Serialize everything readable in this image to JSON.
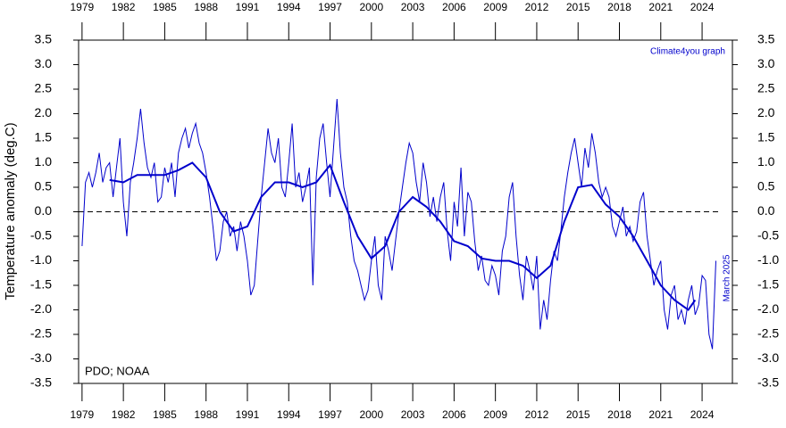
{
  "chart_data": {
    "type": "line",
    "ylabel": "Temperature anomaly (deg.C)",
    "annotations": [
      "Climate4you graph",
      "March 2025",
      "PDO; NOAA"
    ],
    "xlim": [
      1978.75,
      2026.2
    ],
    "ylim": [
      -3.5,
      3.5
    ],
    "xticks": [
      1979,
      1982,
      1985,
      1988,
      1991,
      1994,
      1997,
      2000,
      2003,
      2006,
      2009,
      2012,
      2015,
      2018,
      2021,
      2024
    ],
    "yticks": [
      3.5,
      {
        "value": 3,
        "label": "3.0"
      },
      2.5,
      {
        "value": 2,
        "label": "2.0"
      },
      1.5,
      {
        "value": 1,
        "label": "1.0"
      },
      0.5,
      {
        "value": 0,
        "label": "0.0"
      },
      -0.5,
      {
        "value": -1,
        "label": "-1.0"
      },
      -1.5,
      {
        "value": -2,
        "label": "-2.0"
      },
      -2.5,
      {
        "value": -3,
        "label": "-3.0"
      },
      -3.5
    ],
    "series": [
      {
        "color": "#0000cc",
        "width": 1,
        "x": [
          1979,
          1979.25,
          1979.5,
          1979.75,
          1980,
          1980.25,
          1980.5,
          1980.75,
          1981,
          1981.25,
          1981.5,
          1981.75,
          1982,
          1982.25,
          1982.5,
          1982.75,
          1983,
          1983.25,
          1983.5,
          1983.75,
          1984,
          1984.25,
          1984.5,
          1984.75,
          1985,
          1985.25,
          1985.5,
          1985.75,
          1986,
          1986.25,
          1986.5,
          1986.75,
          1987,
          1987.25,
          1987.5,
          1987.75,
          1988,
          1988.25,
          1988.5,
          1988.75,
          1989,
          1989.25,
          1989.5,
          1989.75,
          1990,
          1990.25,
          1990.5,
          1990.75,
          1991,
          1991.25,
          1991.5,
          1991.75,
          1992,
          1992.25,
          1992.5,
          1992.75,
          1993,
          1993.25,
          1993.5,
          1993.75,
          1994,
          1994.25,
          1994.5,
          1994.75,
          1995,
          1995.25,
          1995.5,
          1995.75,
          1996,
          1996.25,
          1996.5,
          1996.75,
          1997,
          1997.25,
          1997.5,
          1997.75,
          1998,
          1998.25,
          1998.5,
          1998.75,
          1999,
          1999.25,
          1999.5,
          1999.75,
          2000,
          2000.25,
          2000.5,
          2000.75,
          2001,
          2001.25,
          2001.5,
          2001.75,
          2002,
          2002.25,
          2002.5,
          2002.75,
          2003,
          2003.25,
          2003.5,
          2003.75,
          2004,
          2004.25,
          2004.5,
          2004.75,
          2005,
          2005.25,
          2005.5,
          2005.75,
          2006,
          2006.25,
          2006.5,
          2006.75,
          2007,
          2007.25,
          2007.5,
          2007.75,
          2008,
          2008.25,
          2008.5,
          2008.75,
          2009,
          2009.25,
          2009.5,
          2009.75,
          2010,
          2010.25,
          2010.5,
          2010.75,
          2011,
          2011.25,
          2011.5,
          2011.75,
          2012,
          2012.25,
          2012.5,
          2012.75,
          2013,
          2013.25,
          2013.5,
          2013.75,
          2014,
          2014.25,
          2014.5,
          2014.75,
          2015,
          2015.25,
          2015.5,
          2015.75,
          2016,
          2016.25,
          2016.5,
          2016.75,
          2017,
          2017.25,
          2017.5,
          2017.75,
          2018,
          2018.25,
          2018.5,
          2018.75,
          2019,
          2019.25,
          2019.5,
          2019.75,
          2020,
          2020.25,
          2020.5,
          2020.75,
          2021,
          2021.25,
          2021.5,
          2021.75,
          2022,
          2022.25,
          2022.5,
          2022.75,
          2023,
          2023.25,
          2023.5,
          2023.75,
          2024,
          2024.25,
          2024.5,
          2024.75,
          2025
        ],
        "values": [
          -0.7,
          0.6,
          0.8,
          0.5,
          0.8,
          1.2,
          0.6,
          0.9,
          1.0,
          0.3,
          0.9,
          1.5,
          0.2,
          -0.5,
          0.6,
          1.0,
          1.5,
          2.1,
          1.4,
          0.9,
          0.7,
          1.0,
          0.2,
          0.3,
          0.9,
          0.6,
          1.0,
          0.3,
          1.2,
          1.5,
          1.7,
          1.3,
          1.6,
          1.8,
          1.4,
          1.2,
          0.8,
          0.3,
          -0.3,
          -1.0,
          -0.8,
          -0.2,
          0.0,
          -0.5,
          -0.3,
          -0.8,
          -0.2,
          -0.5,
          -1.0,
          -1.7,
          -1.5,
          -0.6,
          0.3,
          1.0,
          1.7,
          1.2,
          1.0,
          1.5,
          0.5,
          0.3,
          1.0,
          1.8,
          0.5,
          0.8,
          0.2,
          0.5,
          0.9,
          -1.5,
          0.7,
          1.5,
          1.8,
          1.0,
          0.3,
          1.3,
          2.3,
          1.2,
          0.5,
          0.2,
          -0.5,
          -1.0,
          -1.2,
          -1.5,
          -1.8,
          -1.6,
          -1.0,
          -0.5,
          -1.5,
          -1.8,
          -0.5,
          -0.8,
          -1.2,
          -0.6,
          0.0,
          0.5,
          1.0,
          1.4,
          1.2,
          0.6,
          0.2,
          1.0,
          0.6,
          -0.1,
          0.3,
          -0.2,
          0.3,
          0.6,
          -0.4,
          -1.0,
          0.2,
          -0.3,
          0.9,
          -0.5,
          0.4,
          0.2,
          -0.6,
          -1.2,
          -0.9,
          -1.4,
          -1.5,
          -1.1,
          -1.3,
          -1.7,
          -0.8,
          -0.5,
          0.3,
          0.6,
          -0.5,
          -1.3,
          -1.8,
          -0.9,
          -1.2,
          -1.6,
          -0.9,
          -2.4,
          -1.8,
          -2.2,
          -1.4,
          -0.8,
          -1.0,
          -0.4,
          0.3,
          0.8,
          1.2,
          1.5,
          1.0,
          0.5,
          1.3,
          0.9,
          1.6,
          1.2,
          0.6,
          0.3,
          0.5,
          0.3,
          -0.3,
          -0.5,
          -0.2,
          0.1,
          -0.5,
          -0.3,
          -0.6,
          -0.4,
          0.2,
          0.4,
          -0.5,
          -1.0,
          -1.5,
          -1.2,
          -1.0,
          -2.0,
          -2.4,
          -1.7,
          -1.5,
          -2.2,
          -2.0,
          -2.3,
          -1.8,
          -1.5,
          -2.1,
          -1.9,
          -1.3,
          -1.4,
          -2.5,
          -2.8,
          -1.0
        ]
      },
      {
        "color": "#0000cc",
        "width": 2,
        "x": [
          1981,
          1982,
          1983,
          1984,
          1985,
          1986,
          1987,
          1988,
          1989,
          1990,
          1991,
          1992,
          1993,
          1994,
          1995,
          1996,
          1997,
          1998,
          1999,
          2000,
          2001,
          2002,
          2003,
          2004,
          2005,
          2006,
          2007,
          2008,
          2009,
          2010,
          2011,
          2012,
          2013,
          2014,
          2015,
          2016,
          2017,
          2018,
          2019,
          2020,
          2021,
          2022,
          2023,
          2023.5
        ],
        "values": [
          0.65,
          0.6,
          0.75,
          0.75,
          0.75,
          0.85,
          1.0,
          0.7,
          0.0,
          -0.4,
          -0.3,
          0.3,
          0.6,
          0.6,
          0.5,
          0.6,
          0.95,
          0.2,
          -0.5,
          -0.95,
          -0.7,
          0.0,
          0.3,
          0.1,
          -0.2,
          -0.6,
          -0.7,
          -0.95,
          -1.0,
          -1.0,
          -1.1,
          -1.35,
          -1.1,
          -0.2,
          0.5,
          0.55,
          0.15,
          -0.1,
          -0.5,
          -1.0,
          -1.5,
          -1.8,
          -2.0,
          -1.8
        ]
      }
    ]
  }
}
